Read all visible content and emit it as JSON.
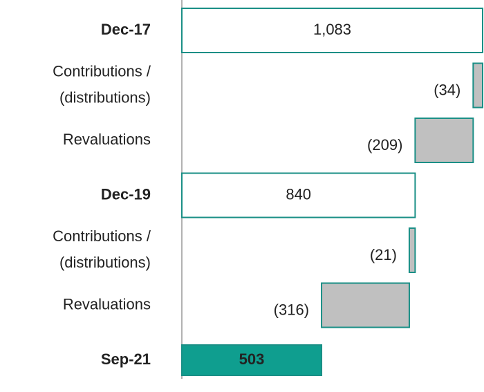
{
  "chart_data": {
    "type": "waterfall",
    "categories": [
      "Dec-17",
      [
        "Contributions /",
        "(distributions)"
      ],
      "Revaluations",
      "Dec-19",
      [
        "Contributions /",
        "(distributions)"
      ],
      "Revaluations",
      "Sep-21"
    ],
    "values": [
      1083,
      -34,
      -209,
      840,
      -21,
      -316,
      503
    ],
    "value_labels": [
      "1,083",
      "(34)",
      "(209)",
      "840",
      "(21)",
      "(316)",
      "503"
    ],
    "is_total": [
      true,
      false,
      false,
      true,
      false,
      false,
      true
    ],
    "xlim": [
      0,
      1083
    ],
    "total_color": "#ffffff",
    "final_color": "#0f9e8f",
    "change_color": "#c0c0c0",
    "edge_color": "#1a8f86"
  }
}
